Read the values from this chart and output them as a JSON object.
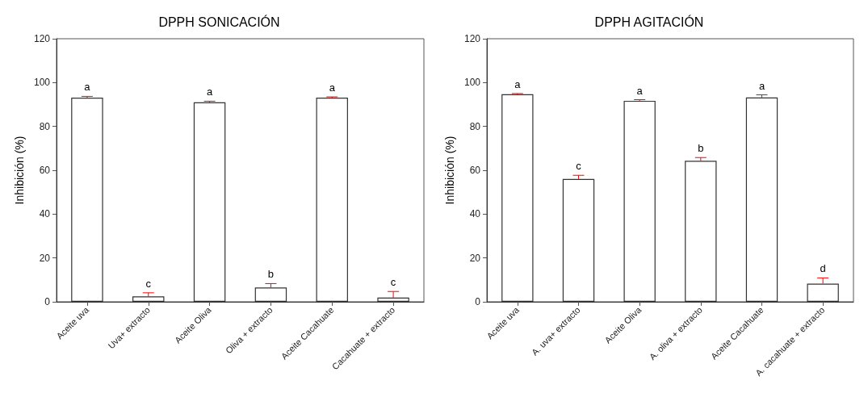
{
  "chart_data": [
    {
      "type": "bar",
      "title": "DPPH SONICACIÓN",
      "ylabel": "Inhibición (%)",
      "categories": [
        "Aceite uva",
        "Uva+ extracto",
        "Aceite Oliva",
        "Oliva + extracto",
        "Aceite Cacahuate",
        "Cacahuate + extracto"
      ],
      "values": [
        93.1,
        2.5,
        91.0,
        6.5,
        93.1,
        1.9
      ],
      "errors": [
        [
          93.1,
          93.7
        ],
        [
          2.5,
          4.1
        ],
        [
          91.0,
          91.5
        ],
        [
          6.5,
          8.3
        ],
        [
          93.1,
          93.5
        ],
        [
          1.9,
          4.7
        ]
      ],
      "color": "#ffffff",
      "ylim": [
        0,
        120
      ],
      "yticks": [
        0,
        20,
        40,
        60,
        80,
        100,
        120
      ],
      "annotations": [
        {
          "text": "a",
          "x": "Aceite uva",
          "y": 93.7
        },
        {
          "text": "c",
          "x": "Uva+ extracto",
          "y": 4.1
        },
        {
          "text": "a",
          "x": "Aceite Oliva",
          "y": 91.5
        },
        {
          "text": "b",
          "x": "Oliva + extracto",
          "y": 8.3
        },
        {
          "text": "a",
          "x": "Aceite Cacahuate",
          "y": 93.5
        },
        {
          "text": "c",
          "x": "Cacahuate + extracto",
          "y": 4.7
        }
      ]
    },
    {
      "type": "bar",
      "title": "DPPH AGITACIÓN",
      "ylabel": "Inhibición (%)",
      "categories": [
        "Aceite uva",
        "A. uva+ extracto",
        "Aceite Oliva",
        "A. oliva + extracto",
        "Aceite Cacahuate",
        "A. cacahuate + extracto"
      ],
      "values": [
        94.7,
        56.0,
        91.7,
        64.3,
        93.2,
        8.3
      ],
      "errors": [
        [
          94.7,
          95.0
        ],
        [
          56.0,
          57.7
        ],
        [
          91.7,
          92.2
        ],
        [
          64.3,
          65.8
        ],
        [
          93.2,
          94.4
        ],
        [
          8.3,
          10.9
        ]
      ],
      "color": "#ffffff",
      "ylim": [
        0,
        120
      ],
      "yticks": [
        0,
        20,
        40,
        60,
        80,
        100,
        120
      ],
      "annotations": [
        {
          "text": "a",
          "x": "Aceite uva",
          "y": 95.0
        },
        {
          "text": "c",
          "x": "A. uva+ extracto",
          "y": 57.7
        },
        {
          "text": "a",
          "x": "Aceite Oliva",
          "y": 92.2
        },
        {
          "text": "b",
          "x": "A. oliva + extracto",
          "y": 65.8
        },
        {
          "text": "a",
          "x": "Aceite Cacahuate",
          "y": 94.4
        },
        {
          "text": "d",
          "x": "A. cacahuate + extracto",
          "y": 10.9
        }
      ]
    }
  ]
}
